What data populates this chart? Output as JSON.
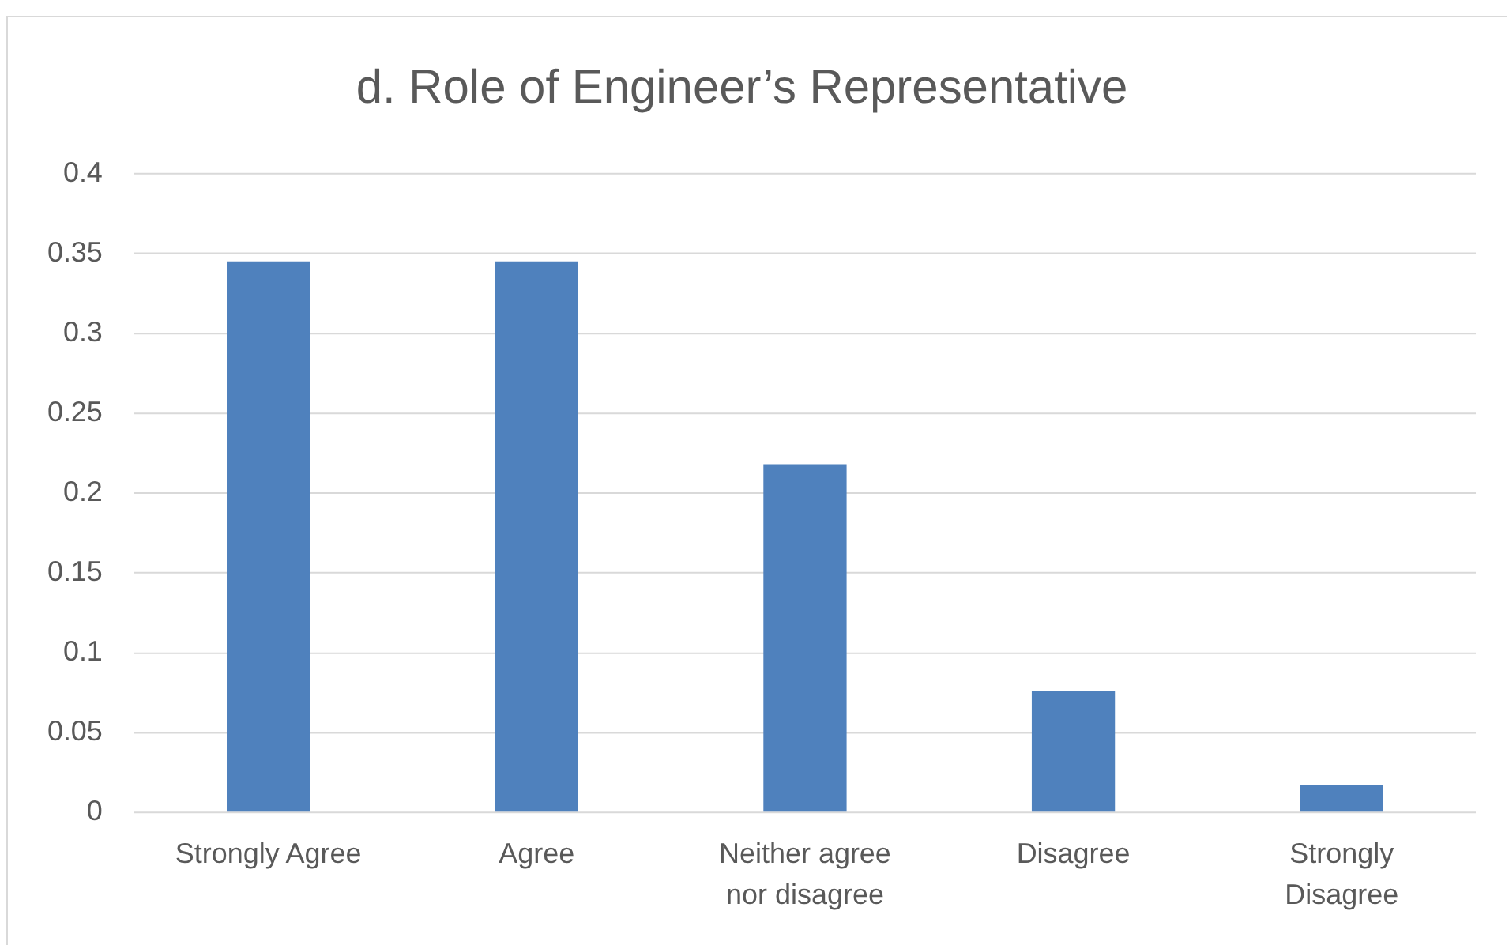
{
  "chart_data": {
    "type": "bar",
    "title": "d. Role of Engineer’s Representative",
    "categories": [
      "Strongly Agree",
      "Agree",
      "Neither agree nor disagree",
      "Disagree",
      "Strongly Disagree"
    ],
    "values": [
      0.345,
      0.345,
      0.218,
      0.076,
      0.017
    ],
    "color": "#4f81bd",
    "ylim": [
      0,
      0.4
    ],
    "yticks": [
      0,
      0.05,
      0.1,
      0.15,
      0.2,
      0.25,
      0.3,
      0.35,
      0.4
    ],
    "grid": "y"
  }
}
